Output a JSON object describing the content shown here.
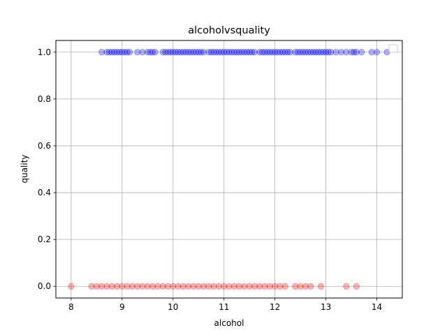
{
  "chart_data": {
    "type": "scatter",
    "title": "alcoholvsquality",
    "xlabel": "alcohol",
    "ylabel": "quality",
    "xlim": [
      7.7,
      14.5
    ],
    "ylim": [
      -0.05,
      1.05
    ],
    "xticks": [
      8,
      9,
      10,
      11,
      12,
      13,
      14
    ],
    "xtick_labels": [
      "8",
      "9",
      "10",
      "11",
      "12",
      "13",
      "14"
    ],
    "yticks": [
      0.0,
      0.2,
      0.4,
      0.6,
      0.8,
      1.0
    ],
    "ytick_labels": [
      "0.0",
      "0.2",
      "0.4",
      "0.6",
      "0.8",
      "1.0"
    ],
    "grid": true,
    "legend": {
      "placement": "upper right",
      "entries": []
    },
    "point_alpha": 0.3,
    "series": [
      {
        "color": "#0000ff",
        "x": [
          8.6,
          8.7,
          8.75,
          8.8,
          8.85,
          8.9,
          8.95,
          9.0,
          9.05,
          9.1,
          9.15,
          9.3,
          9.4,
          9.5,
          9.55,
          9.6,
          9.65,
          9.8,
          9.85,
          9.9,
          9.95,
          10.0,
          10.05,
          10.1,
          10.15,
          10.2,
          10.25,
          10.3,
          10.35,
          10.4,
          10.45,
          10.5,
          10.55,
          10.6,
          10.7,
          10.75,
          10.8,
          10.85,
          10.9,
          10.95,
          11.0,
          11.05,
          11.1,
          11.15,
          11.2,
          11.25,
          11.3,
          11.35,
          11.4,
          11.45,
          11.5,
          11.55,
          11.6,
          11.7,
          11.75,
          11.8,
          11.85,
          11.9,
          11.95,
          12.0,
          12.05,
          12.1,
          12.15,
          12.2,
          12.25,
          12.3,
          12.4,
          12.45,
          12.5,
          12.55,
          12.6,
          12.65,
          12.7,
          12.75,
          12.8,
          12.85,
          12.9,
          12.95,
          13.0,
          13.05,
          13.1,
          13.2,
          13.3,
          13.4,
          13.5,
          13.55,
          13.6,
          13.7,
          13.9,
          14.0,
          14.2
        ],
        "y": [
          1,
          1,
          1,
          1,
          1,
          1,
          1,
          1,
          1,
          1,
          1,
          1,
          1,
          1,
          1,
          1,
          1,
          1,
          1,
          1,
          1,
          1,
          1,
          1,
          1,
          1,
          1,
          1,
          1,
          1,
          1,
          1,
          1,
          1,
          1,
          1,
          1,
          1,
          1,
          1,
          1,
          1,
          1,
          1,
          1,
          1,
          1,
          1,
          1,
          1,
          1,
          1,
          1,
          1,
          1,
          1,
          1,
          1,
          1,
          1,
          1,
          1,
          1,
          1,
          1,
          1,
          1,
          1,
          1,
          1,
          1,
          1,
          1,
          1,
          1,
          1,
          1,
          1,
          1,
          1,
          1,
          1,
          1,
          1,
          1,
          1,
          1,
          1,
          1,
          1,
          1
        ]
      },
      {
        "color": "#ff0000",
        "x": [
          8.0,
          8.4,
          8.5,
          8.6,
          8.7,
          8.8,
          8.9,
          9.0,
          9.1,
          9.2,
          9.3,
          9.4,
          9.5,
          9.6,
          9.7,
          9.8,
          9.9,
          10.0,
          10.1,
          10.2,
          10.3,
          10.4,
          10.5,
          10.6,
          10.7,
          10.8,
          10.9,
          11.0,
          11.1,
          11.2,
          11.3,
          11.4,
          11.5,
          11.6,
          11.7,
          11.8,
          11.9,
          12.0,
          12.1,
          12.2,
          12.4,
          12.5,
          12.6,
          12.7,
          12.9,
          13.4,
          13.6
        ],
        "y": [
          0,
          0,
          0,
          0,
          0,
          0,
          0,
          0,
          0,
          0,
          0,
          0,
          0,
          0,
          0,
          0,
          0,
          0,
          0,
          0,
          0,
          0,
          0,
          0,
          0,
          0,
          0,
          0,
          0,
          0,
          0,
          0,
          0,
          0,
          0,
          0,
          0,
          0,
          0,
          0,
          0,
          0,
          0,
          0,
          0,
          0,
          0
        ]
      }
    ]
  }
}
